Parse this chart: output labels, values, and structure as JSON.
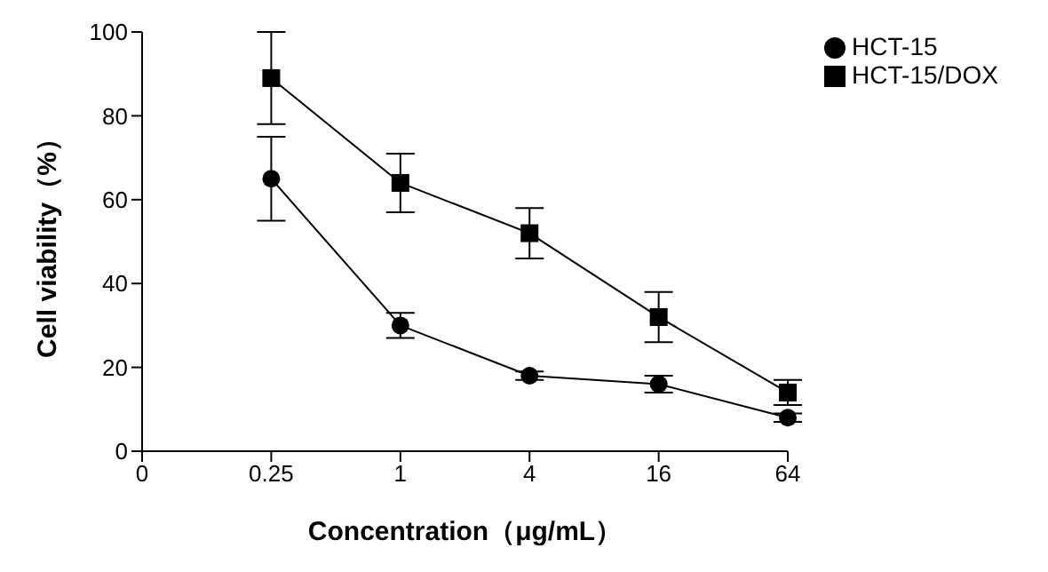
{
  "chart_data": {
    "type": "line",
    "xlabel": "Concentration（μg/mL）",
    "ylabel": "Cell viability（%）",
    "categories": [
      "0",
      "0.25",
      "1",
      "4",
      "16",
      "64"
    ],
    "series": [
      {
        "name": "HCT-15",
        "color": "#000000",
        "marker": "circle",
        "values": [
          null,
          65,
          30,
          18,
          16,
          8
        ],
        "errors": [
          null,
          10,
          3,
          1,
          2,
          1
        ]
      },
      {
        "name": "HCT-15/DOX",
        "color": "#000000",
        "marker": "square",
        "values": [
          null,
          89,
          64,
          52,
          32,
          14
        ],
        "errors": [
          null,
          11,
          7,
          6,
          6,
          3
        ]
      }
    ],
    "ylim": [
      0,
      100
    ],
    "yticks": [
      0,
      20,
      40,
      60,
      80,
      100
    ],
    "grid": false,
    "legend": "top right",
    "line_style": "solid"
  }
}
